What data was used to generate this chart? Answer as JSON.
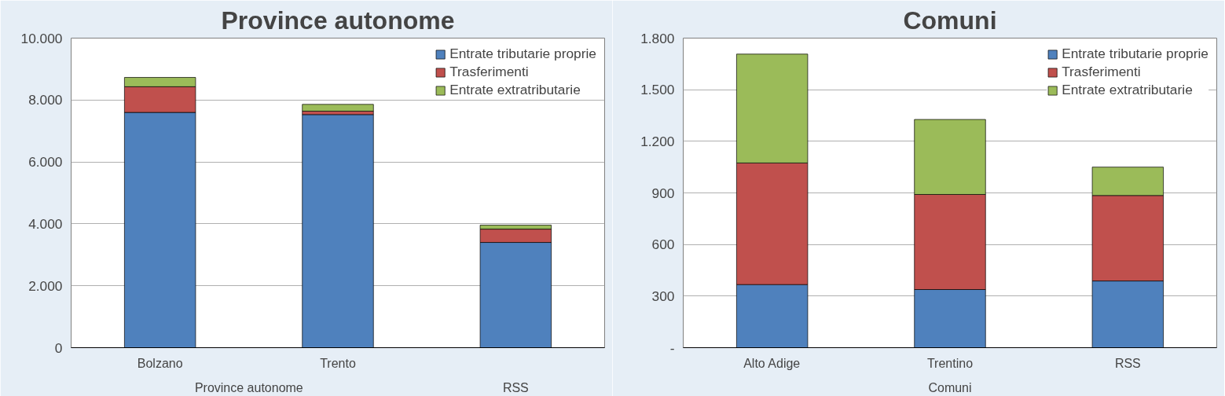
{
  "chart_data": [
    {
      "type": "bar",
      "stacked": true,
      "title": "Province autonome",
      "categories": [
        "Bolzano",
        "Trento",
        null
      ],
      "annotations": [
        "Province autonome",
        "RSS"
      ],
      "ylim": [
        0,
        10000
      ],
      "yticks": [
        {
          "value": 0,
          "label": "0"
        },
        {
          "value": 2000,
          "label": "2.000"
        },
        {
          "value": 4000,
          "label": "4.000"
        },
        {
          "value": 6000,
          "label": "6.000"
        },
        {
          "value": 8000,
          "label": "8.000"
        },
        {
          "value": 10000,
          "label": "10.000"
        }
      ],
      "grid": "y",
      "legend": "top right",
      "series": [
        {
          "name": "Entrate tributarie proprie",
          "color": "#4f81bd",
          "values": [
            7600,
            7530,
            3400
          ]
        },
        {
          "name": "Trasferimenti",
          "color": "#c0504d",
          "values": [
            830,
            110,
            430
          ]
        },
        {
          "name": "Entrate extratributarie",
          "color": "#9bbb59",
          "values": [
            300,
            220,
            130
          ]
        }
      ]
    },
    {
      "type": "bar",
      "stacked": true,
      "title": "Comuni",
      "categories": [
        "Alto Adige",
        "Trentino",
        "RSS"
      ],
      "annotations": [
        "Comuni"
      ],
      "ylim": [
        0,
        1800
      ],
      "yticks": [
        {
          "value": 0,
          "label": "-"
        },
        {
          "value": 300,
          "label": "300"
        },
        {
          "value": 600,
          "label": "600"
        },
        {
          "value": 900,
          "label": "900"
        },
        {
          "value": 1200,
          "label": "1.200"
        },
        {
          "value": 1500,
          "label": "1.500"
        },
        {
          "value": 1800,
          "label": "1.800"
        }
      ],
      "grid": "y",
      "legend": "top right",
      "series": [
        {
          "name": "Entrate tributarie proprie",
          "color": "#4f81bd",
          "values": [
            367,
            338,
            388
          ]
        },
        {
          "name": "Trasferimenti",
          "color": "#c0504d",
          "values": [
            707,
            553,
            497
          ]
        },
        {
          "name": "Entrate extratributarie",
          "color": "#9bbb59",
          "values": [
            633,
            436,
            165
          ]
        }
      ]
    }
  ]
}
